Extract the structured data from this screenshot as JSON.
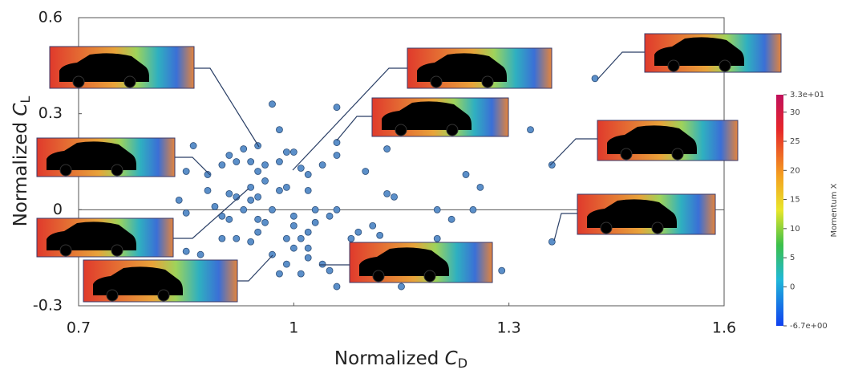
{
  "chart_data": {
    "type": "scatter",
    "xlabel": {
      "text": "Normalized ",
      "symbol": "C",
      "subscript": "D"
    },
    "ylabel": {
      "text": "Normalized ",
      "symbol": "C",
      "subscript": "L"
    },
    "xlim": [
      0.7,
      1.6
    ],
    "ylim": [
      -0.3,
      0.6
    ],
    "xticks": [
      0.7,
      1,
      1.3,
      1.6
    ],
    "yticks": [
      -0.3,
      0,
      0.3,
      0.6
    ],
    "zero_line": true,
    "color": "#5b8fc9",
    "x": [
      0.97,
      0.98,
      1.06,
      1.33,
      1.42,
      1.36,
      1.36,
      0.86,
      0.85,
      0.88,
      0.84,
      0.85,
      0.85,
      0.87,
      0.89,
      0.88,
      0.9,
      0.91,
      0.92,
      0.93,
      0.94,
      0.95,
      0.96,
      0.95,
      0.98,
      0.99,
      1.0,
      1.01,
      0.99,
      0.98,
      0.96,
      0.94,
      0.92,
      0.91,
      0.9,
      0.91,
      0.93,
      0.94,
      0.95,
      0.97,
      0.96,
      0.95,
      0.9,
      0.92,
      0.94,
      0.95,
      0.97,
      0.99,
      1.0,
      1.0,
      1.02,
      1.03,
      1.02,
      1.04,
      1.06,
      1.06,
      1.13,
      1.1,
      1.13,
      1.14,
      1.06,
      1.05,
      1.03,
      1.02,
      1.01,
      1.02,
      1.01,
      1.04,
      1.05,
      1.06,
      1.08,
      1.09,
      1.11,
      1.12,
      1.15,
      1.2,
      1.2,
      1.22,
      1.24,
      1.26,
      1.25,
      1.26,
      1.29,
      1.0,
      1.02,
      0.99,
      0.98
    ],
    "y": [
      0.33,
      0.25,
      0.32,
      0.25,
      0.41,
      0.14,
      -0.1,
      0.2,
      0.12,
      0.11,
      0.03,
      -0.01,
      -0.13,
      -0.14,
      0.01,
      0.06,
      0.14,
      0.17,
      0.15,
      0.19,
      0.15,
      0.12,
      0.14,
      0.2,
      0.15,
      0.18,
      0.18,
      0.13,
      0.07,
      0.06,
      0.09,
      0.07,
      0.04,
      0.05,
      -0.02,
      -0.03,
      0.0,
      0.03,
      0.04,
      0.0,
      -0.04,
      -0.03,
      -0.09,
      -0.09,
      -0.1,
      -0.07,
      -0.14,
      -0.09,
      -0.02,
      -0.05,
      0.06,
      0.0,
      0.11,
      0.14,
      0.17,
      0.21,
      0.19,
      0.12,
      0.05,
      0.04,
      0.0,
      -0.02,
      -0.04,
      -0.07,
      -0.09,
      -0.15,
      -0.2,
      -0.17,
      -0.19,
      -0.24,
      -0.09,
      -0.07,
      -0.05,
      -0.08,
      -0.24,
      0.0,
      -0.09,
      -0.03,
      0.11,
      0.07,
      0.0,
      -0.12,
      -0.19,
      -0.12,
      -0.12,
      -0.17,
      -0.2
    ],
    "colorbar": {
      "label": "Momentum X",
      "lim": [
        -6.7,
        33
      ],
      "ticks": [
        {
          "value": 33,
          "label": "3.3e+01"
        },
        30,
        25,
        20,
        15,
        10,
        5,
        0,
        {
          "value": -6.7,
          "label": "-6.7e+00"
        }
      ]
    }
  }
}
